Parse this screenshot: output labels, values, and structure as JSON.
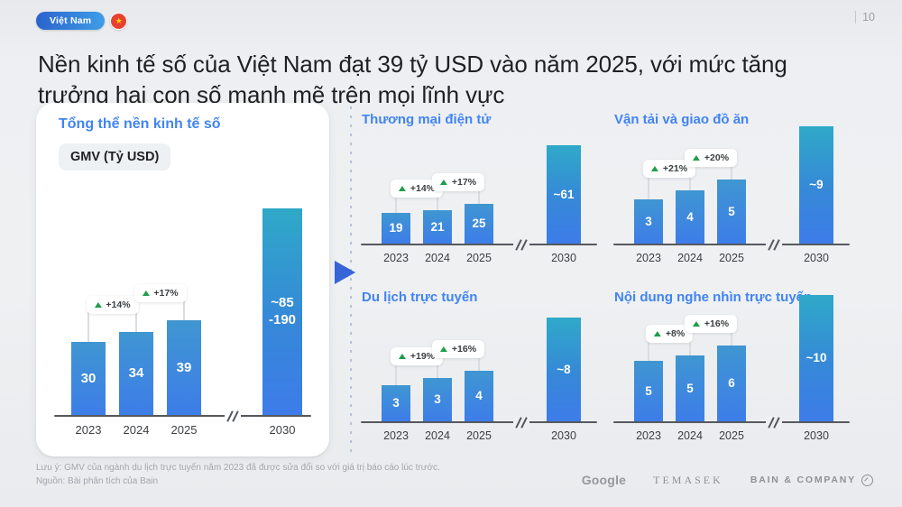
{
  "slide": {
    "country_badge": "Việt Nam",
    "page_number": "10",
    "title": "Nền kinh tế số của Việt Nam đạt 39 tỷ USD vào năm 2025, với mức tăng trưởng hai con số mạnh mẽ trên mọi lĩnh vực"
  },
  "chart_data": [
    {
      "id": "overall-digital-economy",
      "type": "bar",
      "title": "Tổng thể nền kinh tế số",
      "unit_label": "GMV (Tỷ USD)",
      "categories": [
        "2023",
        "2024",
        "2025",
        "2030"
      ],
      "values": [
        "30",
        "34",
        "39"
      ],
      "values_numeric": [
        30,
        34,
        39
      ],
      "projection_2030": {
        "label": "~85\n-190",
        "value": 85,
        "high": 190
      },
      "growth": [
        {
          "from": "2023",
          "to": "2024",
          "label": "+14%"
        },
        {
          "from": "2024",
          "to": "2025",
          "label": "+17%"
        }
      ],
      "axis_break": true
    },
    {
      "id": "ecommerce",
      "type": "bar",
      "title": "Thương mại điện tử",
      "categories": [
        "2023",
        "2024",
        "2025",
        "2030"
      ],
      "values": [
        "19",
        "21",
        "25"
      ],
      "values_numeric": [
        19,
        21,
        25
      ],
      "projection_2030": {
        "label": "~61",
        "value": 61
      },
      "growth": [
        {
          "from": "2023",
          "to": "2024",
          "label": "+14%"
        },
        {
          "from": "2024",
          "to": "2025",
          "label": "+17%"
        }
      ],
      "axis_break": true
    },
    {
      "id": "transport-food-delivery",
      "type": "bar",
      "title": "Vận tải và giao đồ ăn",
      "categories": [
        "2023",
        "2024",
        "2025",
        "2030"
      ],
      "values": [
        "3",
        "4",
        "5"
      ],
      "values_numeric": [
        3.4,
        4.1,
        4.9
      ],
      "projection_2030": {
        "label": "~9",
        "value": 9
      },
      "growth": [
        {
          "from": "2023",
          "to": "2024",
          "label": "+21%"
        },
        {
          "from": "2024",
          "to": "2025",
          "label": "+20%"
        }
      ],
      "axis_break": true
    },
    {
      "id": "online-travel",
      "type": "bar",
      "title": "Du lịch trực tuyến",
      "categories": [
        "2023",
        "2024",
        "2025",
        "2030"
      ],
      "values": [
        "3",
        "3",
        "4"
      ],
      "values_numeric": [
        2.8,
        3.3,
        3.9
      ],
      "projection_2030": {
        "label": "~8",
        "value": 8
      },
      "growth": [
        {
          "from": "2023",
          "to": "2024",
          "label": "+19%"
        },
        {
          "from": "2024",
          "to": "2025",
          "label": "+16%"
        }
      ],
      "axis_break": true
    },
    {
      "id": "online-media",
      "type": "bar",
      "title": "Nội dung nghe nhìn trực tuyến",
      "categories": [
        "2023",
        "2024",
        "2025",
        "2030"
      ],
      "values": [
        "5",
        "5",
        "6"
      ],
      "values_numeric": [
        4.8,
        5.2,
        6.0
      ],
      "projection_2030": {
        "label": "~10",
        "value": 10
      },
      "growth": [
        {
          "from": "2023",
          "to": "2024",
          "label": "+8%"
        },
        {
          "from": "2024",
          "to": "2025",
          "label": "+16%"
        }
      ],
      "axis_break": true
    }
  ],
  "footer": {
    "note": "Lưu ý: GMV của ngành du lịch trực tuyến năm 2023 đã được sửa đổi so với giá trị báo cáo lúc trước.",
    "source": "Nguồn: Bài phân tích của Bain",
    "logos": {
      "google": "Google",
      "temasek": "TEMASEK",
      "bain": "BAIN & COMPANY"
    }
  },
  "colors": {
    "accent_blue": "#4184f3",
    "bar_gradient_top": "#3f96d1",
    "bar_gradient_bottom": "#3d7de9",
    "bar_tall_top": "#2fa9c8",
    "growth_green": "#1e9e4a",
    "title_text": "#1f2023",
    "muted_text": "#9aa0a6",
    "flag_red": "#e8402f",
    "flag_star_yellow": "#ffd500"
  }
}
